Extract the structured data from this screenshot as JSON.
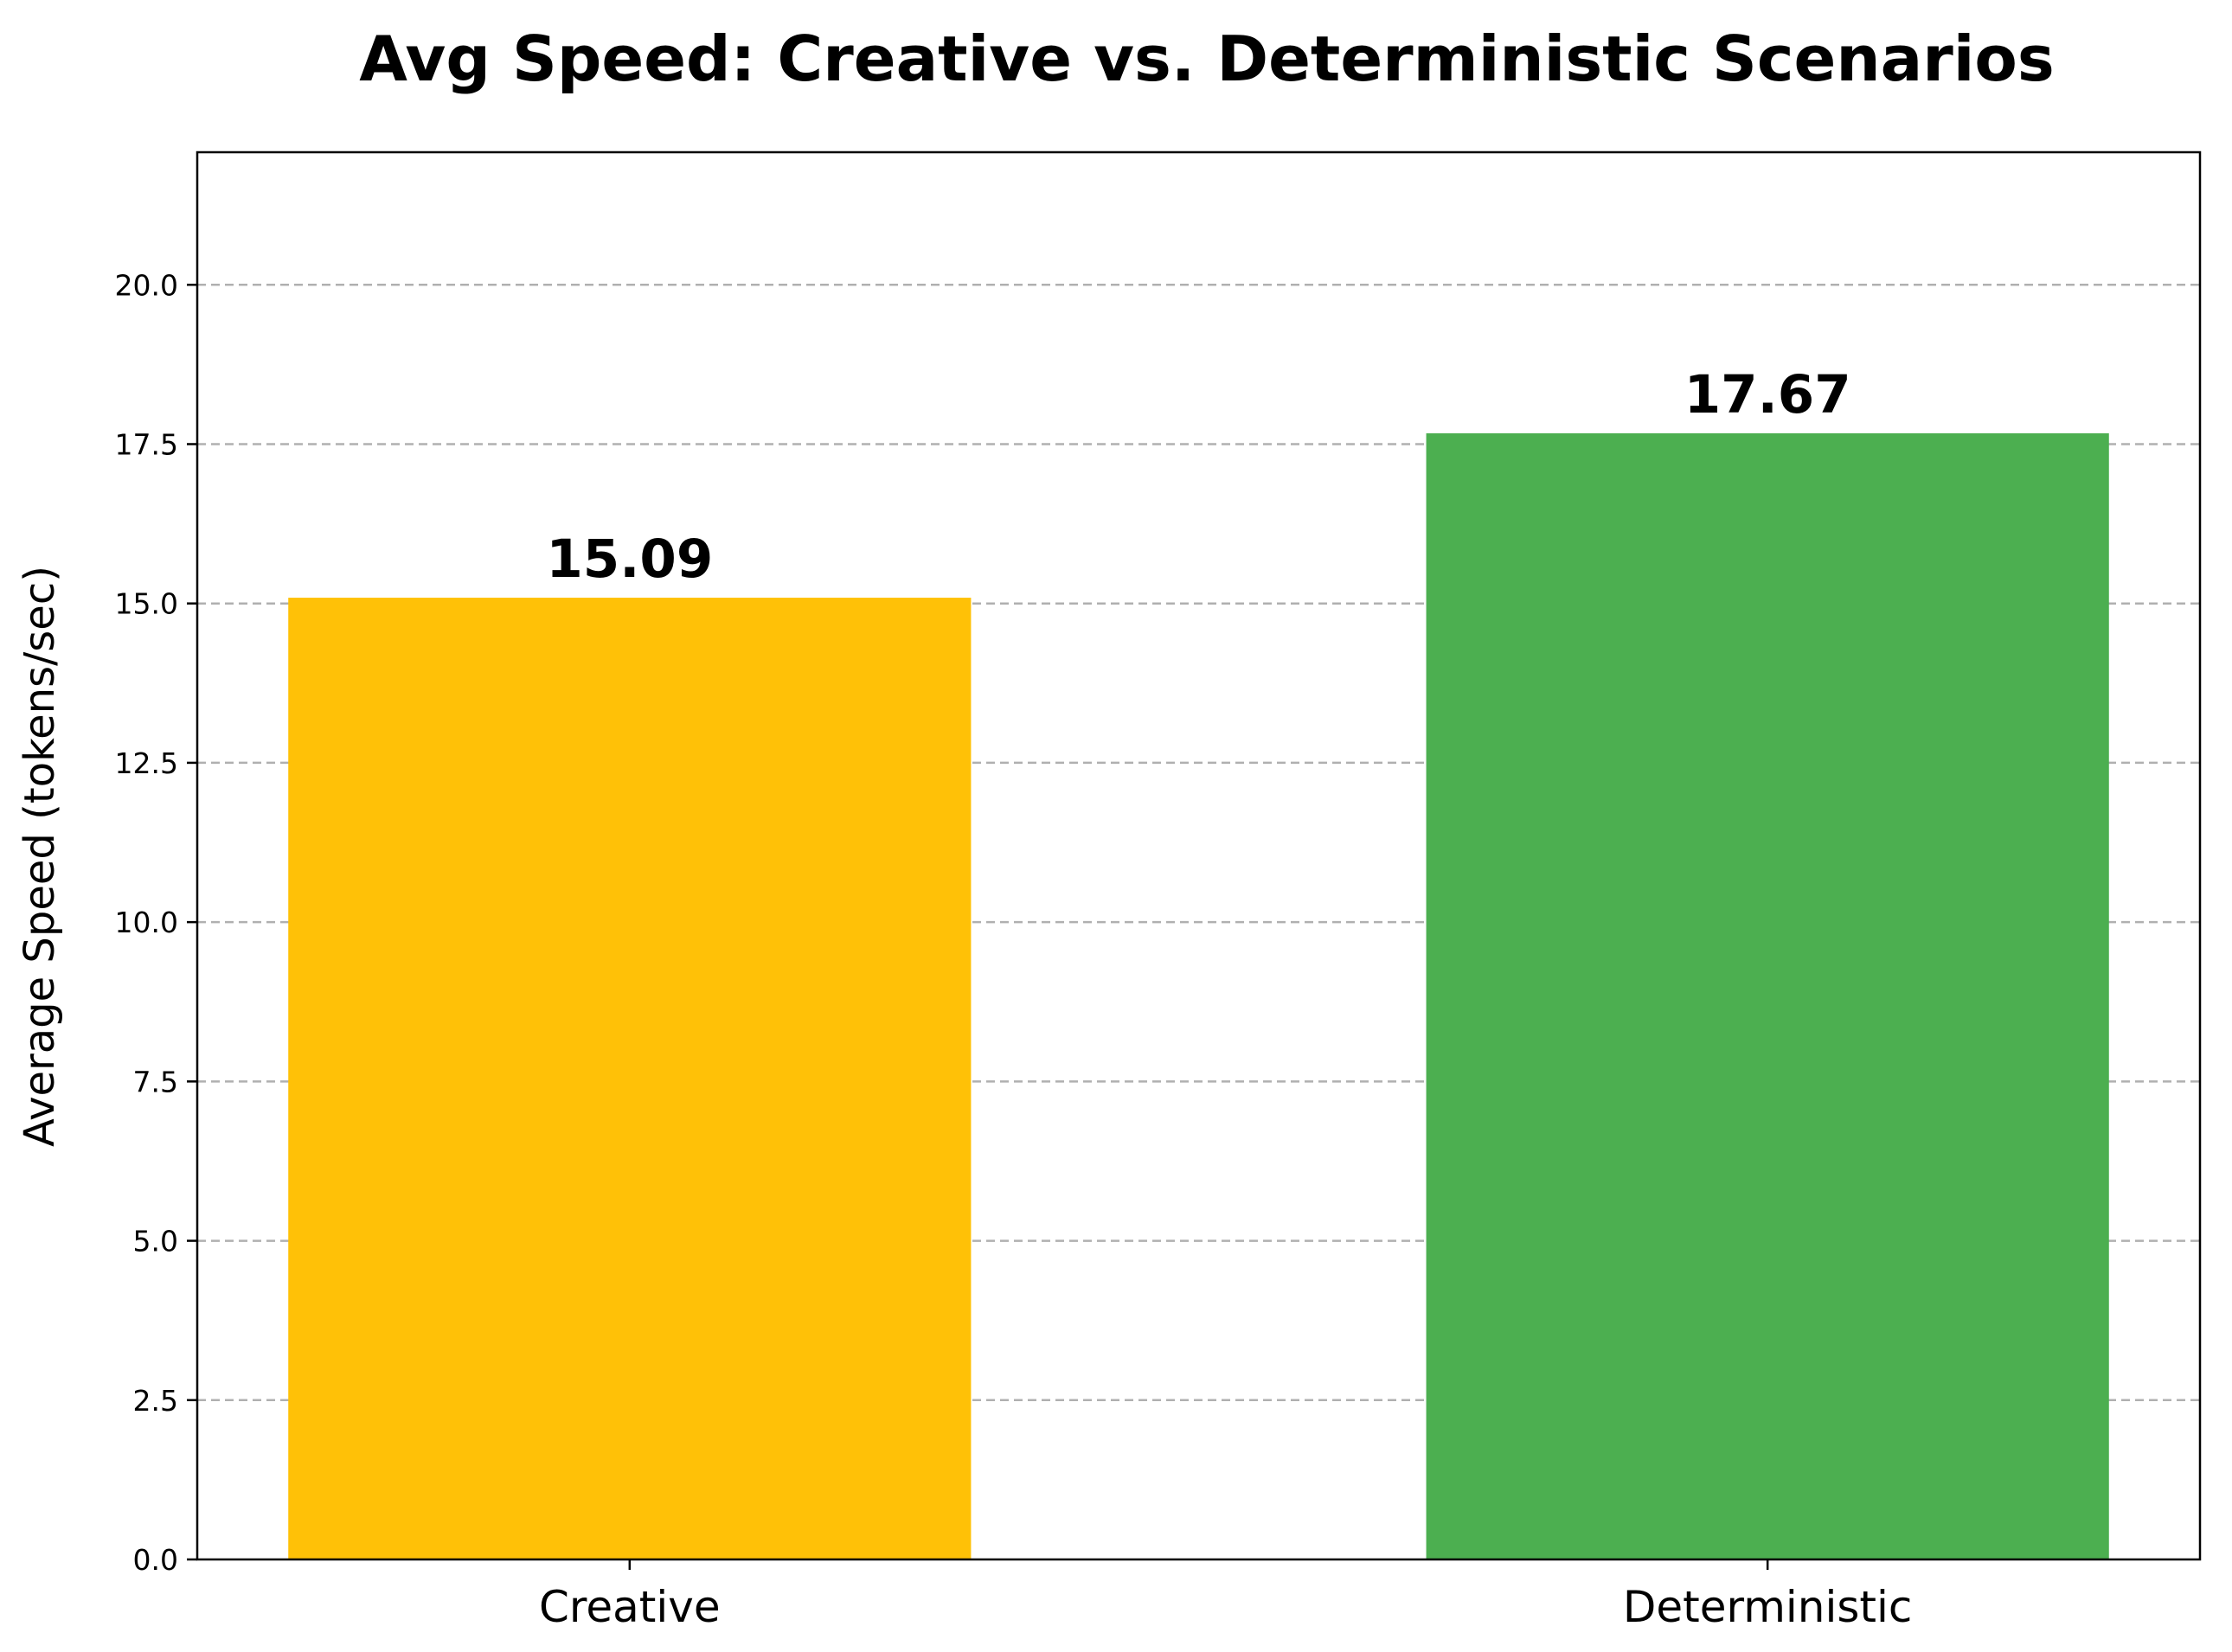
{
  "chart_data": {
    "type": "bar",
    "title": "Avg Speed: Creative vs. Deterministic Scenarios",
    "xlabel": "",
    "ylabel": "Average Speed (tokens/sec)",
    "categories": [
      "Creative",
      "Deterministic"
    ],
    "values": [
      15.09,
      17.67
    ],
    "value_labels": [
      "15.09",
      "17.67"
    ],
    "colors": [
      "#FFC107",
      "#4CAF50"
    ],
    "ylim": [
      0,
      22.08
    ],
    "yticks": [
      0.0,
      2.5,
      5.0,
      7.5,
      10.0,
      12.5,
      15.0,
      17.5,
      20.0
    ],
    "ytick_labels": [
      "0.0",
      "2.5",
      "5.0",
      "7.5",
      "10.0",
      "12.5",
      "15.0",
      "17.5",
      "20.0"
    ],
    "grid": "y-dashed",
    "legend": "none"
  }
}
